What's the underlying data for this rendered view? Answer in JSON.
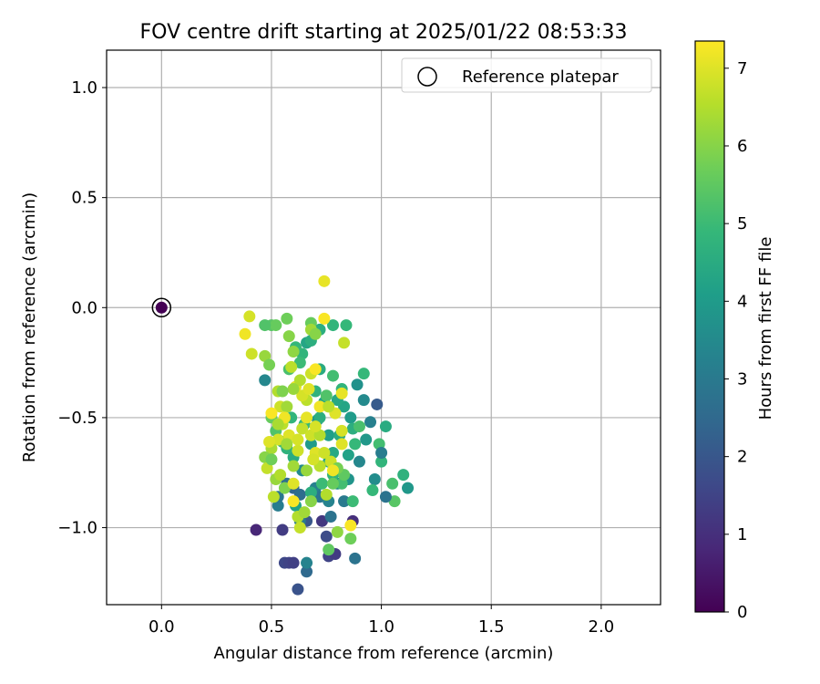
{
  "chart_data": {
    "type": "scatter",
    "title": "FOV centre drift starting at 2025/01/22 08:53:33",
    "xlabel": "Angular distance from reference (arcmin)",
    "ylabel": "Rotation from reference (arcmin)",
    "xlim": [
      -0.25,
      2.27
    ],
    "ylim": [
      -1.35,
      1.17
    ],
    "xticks": [
      0.0,
      0.5,
      1.0,
      1.5,
      2.0
    ],
    "xtick_labels": [
      "0.0",
      "0.5",
      "1.0",
      "1.5",
      "2.0"
    ],
    "yticks": [
      1.0,
      0.5,
      0.0,
      -0.5,
      -1.0
    ],
    "ytick_labels": [
      "1.0",
      "0.5",
      "0.0",
      "−0.5",
      "−1.0"
    ],
    "grid": true,
    "legend": {
      "placement": "top-right",
      "entries": [
        "Reference platepar"
      ]
    },
    "reference_point": {
      "x": 0.0,
      "y": 0.0,
      "marker": "open-circle"
    },
    "colorbar": {
      "label": "Hours from first FF file",
      "min": 0,
      "max": 7.35,
      "ticks": [
        0,
        1,
        2,
        3,
        4,
        5,
        6,
        7
      ],
      "tick_labels": [
        "0",
        "1",
        "2",
        "3",
        "4",
        "5",
        "6",
        "7"
      ],
      "colormap": "viridis",
      "stops": [
        "#440154",
        "#482878",
        "#3e4989",
        "#31688e",
        "#26828e",
        "#1f9e89",
        "#35b779",
        "#6ece58",
        "#b5de2b",
        "#fde725"
      ]
    },
    "points": [
      [
        0.0,
        0.0,
        0.0
      ],
      [
        0.43,
        -1.01,
        0.8
      ],
      [
        0.55,
        -1.01,
        1.3
      ],
      [
        0.56,
        -1.16,
        1.6
      ],
      [
        0.58,
        -1.16,
        1.5
      ],
      [
        0.6,
        -1.16,
        1.4
      ],
      [
        0.62,
        -1.28,
        1.9
      ],
      [
        0.66,
        -1.2,
        2.5
      ],
      [
        0.66,
        -1.16,
        3.3
      ],
      [
        0.73,
        -0.97,
        1.2
      ],
      [
        0.75,
        -1.04,
        1.7
      ],
      [
        0.76,
        -1.13,
        1.5
      ],
      [
        0.79,
        -1.12,
        1.3
      ],
      [
        0.87,
        -0.97,
        1.0
      ],
      [
        0.88,
        -1.14,
        2.8
      ],
      [
        0.66,
        -0.97,
        2.0
      ],
      [
        0.63,
        -0.97,
        3.0
      ],
      [
        0.47,
        -0.33,
        3.4
      ],
      [
        0.57,
        -0.8,
        2.7
      ],
      [
        0.6,
        -0.82,
        2.4
      ],
      [
        0.63,
        -0.85,
        2.6
      ],
      [
        0.53,
        -0.9,
        3.1
      ],
      [
        0.53,
        -0.86,
        2.9
      ],
      [
        0.64,
        -0.74,
        3.5
      ],
      [
        0.7,
        -0.82,
        3.2
      ],
      [
        0.72,
        -0.86,
        2.9
      ],
      [
        0.76,
        -0.88,
        3.3
      ],
      [
        0.77,
        -0.95,
        2.8
      ],
      [
        0.8,
        -0.8,
        3.6
      ],
      [
        0.83,
        -0.88,
        3.0
      ],
      [
        0.85,
        -0.78,
        3.8
      ],
      [
        0.9,
        -0.7,
        3.4
      ],
      [
        0.93,
        -0.6,
        3.9
      ],
      [
        0.98,
        -0.44,
        2.1
      ],
      [
        0.95,
        -0.52,
        3.2
      ],
      [
        0.92,
        -0.42,
        3.5
      ],
      [
        0.89,
        -0.35,
        3.7
      ],
      [
        0.74,
        -0.43,
        4.2
      ],
      [
        0.71,
        -0.51,
        3.8
      ],
      [
        0.76,
        -0.58,
        4.1
      ],
      [
        0.78,
        -0.66,
        4.4
      ],
      [
        0.68,
        -0.62,
        4.0
      ],
      [
        0.66,
        -0.16,
        4.3
      ],
      [
        0.68,
        -0.15,
        4.6
      ],
      [
        0.64,
        -0.21,
        4.8
      ],
      [
        0.63,
        -0.25,
        5.0
      ],
      [
        0.58,
        -0.28,
        5.2
      ],
      [
        0.61,
        -0.18,
        4.9
      ],
      [
        0.7,
        -0.38,
        4.7
      ],
      [
        0.72,
        -0.28,
        4.5
      ],
      [
        0.83,
        -0.45,
        4.3
      ],
      [
        0.86,
        -0.5,
        4.0
      ],
      [
        0.87,
        -0.55,
        4.6
      ],
      [
        0.88,
        -0.62,
        4.9
      ],
      [
        0.81,
        -0.58,
        4.5
      ],
      [
        0.76,
        -0.7,
        4.3
      ],
      [
        0.78,
        -0.76,
        4.8
      ],
      [
        0.82,
        -0.8,
        5.1
      ],
      [
        0.73,
        -0.8,
        5.0
      ],
      [
        0.68,
        -0.84,
        4.6
      ],
      [
        0.61,
        -0.9,
        4.2
      ],
      [
        0.6,
        -0.68,
        4.5
      ],
      [
        0.57,
        -0.64,
        4.7
      ],
      [
        0.55,
        -0.61,
        5.0
      ],
      [
        0.52,
        -0.56,
        5.3
      ],
      [
        0.5,
        -0.5,
        5.6
      ],
      [
        0.59,
        -0.5,
        4.8
      ],
      [
        0.65,
        -0.53,
        4.9
      ],
      [
        0.72,
        -0.5,
        4.6
      ],
      [
        0.8,
        -0.42,
        4.4
      ],
      [
        0.82,
        -0.37,
        4.8
      ],
      [
        0.78,
        -0.31,
        5.1
      ],
      [
        0.75,
        -0.4,
        5.3
      ],
      [
        0.92,
        -0.3,
        4.9
      ],
      [
        0.99,
        -0.62,
        5.1
      ],
      [
        1.0,
        -0.7,
        4.8
      ],
      [
        1.02,
        -0.54,
        4.5
      ],
      [
        1.05,
        -0.8,
        5.2
      ],
      [
        1.1,
        -0.76,
        4.7
      ],
      [
        1.12,
        -0.82,
        3.9
      ],
      [
        1.06,
        -0.88,
        5.4
      ],
      [
        1.02,
        -0.86,
        2.8
      ],
      [
        0.97,
        -0.78,
        3.6
      ],
      [
        0.96,
        -0.83,
        4.9
      ],
      [
        1.0,
        -0.66,
        3.1
      ],
      [
        0.87,
        -0.88,
        5.0
      ],
      [
        0.83,
        -0.76,
        5.5
      ],
      [
        0.85,
        -0.67,
        4.2
      ],
      [
        0.9,
        -0.54,
        5.2
      ],
      [
        0.84,
        -0.08,
        4.9
      ],
      [
        0.78,
        -0.08,
        4.8
      ],
      [
        0.72,
        -0.1,
        4.6
      ],
      [
        0.68,
        -0.07,
        5.6
      ],
      [
        0.5,
        -0.08,
        5.4
      ],
      [
        0.52,
        -0.08,
        5.6
      ],
      [
        0.47,
        -0.08,
        5.3
      ],
      [
        0.57,
        -0.05,
        5.7
      ],
      [
        0.58,
        -0.13,
        6.0
      ],
      [
        0.6,
        -0.2,
        6.1
      ],
      [
        0.68,
        -0.1,
        6.3
      ],
      [
        0.7,
        -0.12,
        6.0
      ],
      [
        0.47,
        -0.22,
        6.2
      ],
      [
        0.49,
        -0.26,
        5.8
      ],
      [
        0.53,
        -0.38,
        6.5
      ],
      [
        0.54,
        -0.45,
        6.8
      ],
      [
        0.57,
        -0.45,
        6.3
      ],
      [
        0.55,
        -0.53,
        6.6
      ],
      [
        0.53,
        -0.6,
        6.9
      ],
      [
        0.5,
        -0.64,
        6.4
      ],
      [
        0.47,
        -0.68,
        6.0
      ],
      [
        0.48,
        -0.73,
        6.7
      ],
      [
        0.5,
        -0.69,
        5.7
      ],
      [
        0.52,
        -0.78,
        6.2
      ],
      [
        0.56,
        -0.82,
        5.9
      ],
      [
        0.54,
        -0.76,
        6.5
      ],
      [
        0.6,
        -0.72,
        6.3
      ],
      [
        0.62,
        -0.65,
        6.8
      ],
      [
        0.58,
        -0.58,
        7.0
      ],
      [
        0.62,
        -0.6,
        6.9
      ],
      [
        0.64,
        -0.55,
        6.7
      ],
      [
        0.66,
        -0.5,
        7.1
      ],
      [
        0.68,
        -0.58,
        6.8
      ],
      [
        0.7,
        -0.66,
        7.0
      ],
      [
        0.72,
        -0.72,
        6.6
      ],
      [
        0.74,
        -0.66,
        6.8
      ],
      [
        0.72,
        -0.58,
        6.5
      ],
      [
        0.7,
        -0.54,
        6.9
      ],
      [
        0.72,
        -0.45,
        7.2
      ],
      [
        0.66,
        -0.42,
        6.6
      ],
      [
        0.64,
        -0.4,
        6.9
      ],
      [
        0.61,
        -0.36,
        7.1
      ],
      [
        0.63,
        -0.33,
        6.5
      ],
      [
        0.6,
        -0.37,
        6.2
      ],
      [
        0.68,
        -0.3,
        6.8
      ],
      [
        0.7,
        -0.28,
        7.3
      ],
      [
        0.74,
        -0.05,
        7.3
      ],
      [
        0.74,
        0.12,
        7.1
      ],
      [
        0.38,
        -0.12,
        7.2
      ],
      [
        0.4,
        -0.04,
        6.9
      ],
      [
        0.41,
        -0.21,
        6.8
      ],
      [
        0.5,
        -0.48,
        7.3
      ],
      [
        0.56,
        -0.5,
        7.2
      ],
      [
        0.53,
        -0.53,
        6.4
      ],
      [
        0.57,
        -0.62,
        6.3
      ],
      [
        0.6,
        -0.8,
        7.0
      ],
      [
        0.6,
        -0.88,
        7.3
      ],
      [
        0.62,
        -0.95,
        6.5
      ],
      [
        0.63,
        -1.0,
        6.7
      ],
      [
        0.65,
        -0.93,
        6.3
      ],
      [
        0.68,
        -0.88,
        6.0
      ],
      [
        0.66,
        -0.74,
        6.2
      ],
      [
        0.69,
        -0.69,
        6.9
      ],
      [
        0.75,
        -0.85,
        6.5
      ],
      [
        0.77,
        -0.7,
        6.8
      ],
      [
        0.8,
        -0.73,
        5.8
      ],
      [
        0.78,
        -0.8,
        5.6
      ],
      [
        0.82,
        -0.62,
        7.0
      ],
      [
        0.82,
        -0.56,
        6.9
      ],
      [
        0.79,
        -0.48,
        7.0
      ],
      [
        0.82,
        -0.39,
        7.1
      ],
      [
        0.76,
        -0.45,
        6.6
      ],
      [
        0.86,
        -0.99,
        7.3
      ],
      [
        0.86,
        -1.05,
        5.7
      ],
      [
        0.8,
        -1.02,
        6.1
      ],
      [
        0.76,
        -1.1,
        5.5
      ],
      [
        0.78,
        -0.74,
        7.2
      ],
      [
        0.83,
        -0.16,
        6.7
      ],
      [
        0.67,
        -0.37,
        7.0
      ],
      [
        0.59,
        -0.27,
        6.6
      ],
      [
        0.51,
        -0.86,
        6.6
      ],
      [
        0.55,
        -0.38,
        5.9
      ],
      [
        0.49,
        -0.61,
        7.0
      ]
    ]
  }
}
